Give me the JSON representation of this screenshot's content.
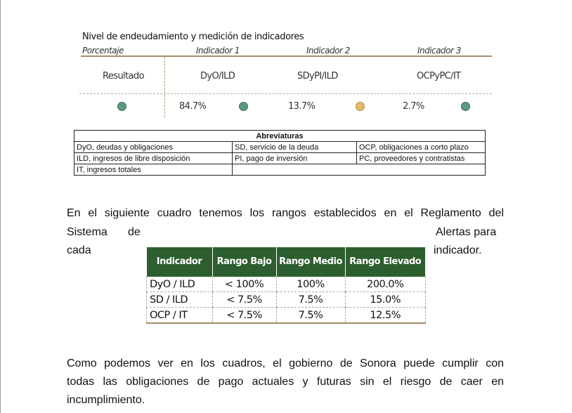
{
  "indicators_table": {
    "title": "Nivel de endeudamiento y medición de indicadores",
    "headers": [
      "Porcentaje",
      "Indicador 1",
      "Indicador 2",
      "Indicador 3"
    ],
    "row_label": "Resultado",
    "indicator_names": [
      "DyO/ILD",
      "SDyPI/ILD",
      "OCPyPC/IT"
    ],
    "values": [
      "84.7%",
      "13.7%",
      "2.7%"
    ],
    "status_colors": [
      "#5a9a7f",
      "#5a9a7f",
      "#e3b96a",
      "#5a9a7f"
    ]
  },
  "abbreviations": {
    "title": "Abreviaturas",
    "rows": [
      [
        "DyO, deudas y obligaciones",
        "SD, servicio de la deuda",
        "OCP, obligaciones a corto plazo"
      ],
      [
        "ILD, ingresos de libre disposición",
        "PI, pago de inversión",
        "PC, proveedores y contratistas"
      ],
      [
        "IT, ingresos totales",
        ""
      ]
    ]
  },
  "paragraph1": {
    "line1": "En el siguiente cuadro tenemos los rangos establecidos en el Reglamento del",
    "line2a": "Sistema",
    "line2b": "de",
    "line2c": "Alertas para",
    "line3a": "cada",
    "line3b": "indicador."
  },
  "ranges_table": {
    "headers": [
      "Indicador",
      "Rango Bajo",
      "Rango Medio",
      "Rango Elevado"
    ],
    "rows": [
      [
        "DyO / ILD",
        "< 100%",
        "100%",
        "200.0%"
      ],
      [
        "SD / ILD",
        "< 7.5%",
        "7.5%",
        "15.0%"
      ],
      [
        "OCP / IT",
        "< 7.5%",
        "7.5%",
        "12.5%"
      ]
    ],
    "header_color": "#2d5e2f"
  },
  "paragraph2": {
    "line1": "Como podemos ver en los cuadros, el gobierno de Sonora puede cumplir con",
    "line2": "todas las obligaciones de pago actuales y futuras sin el riesgo de caer en",
    "line3": "incumplimiento."
  }
}
